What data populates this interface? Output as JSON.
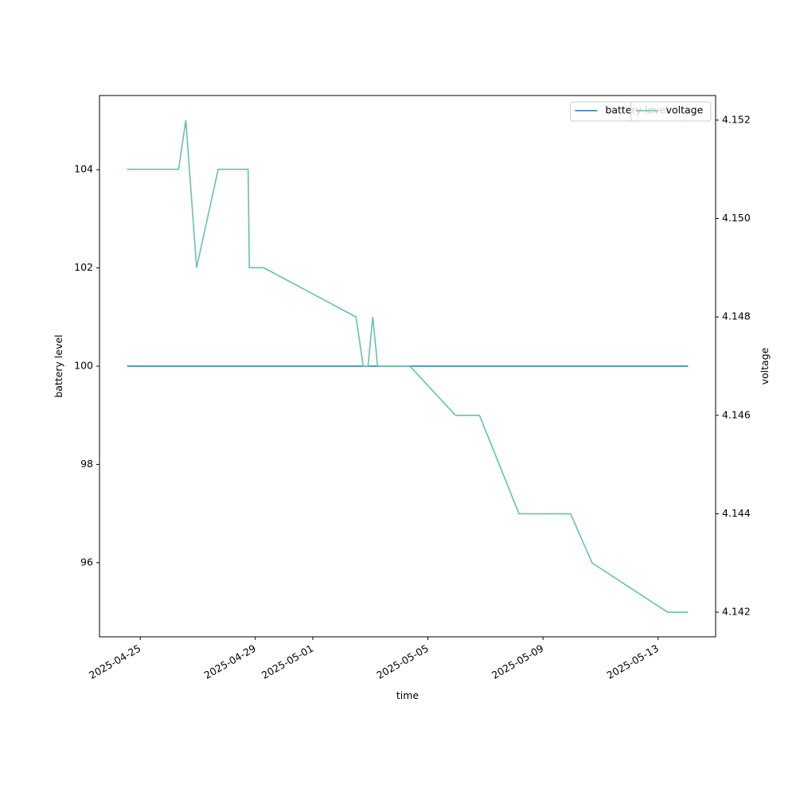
{
  "chart_data": {
    "type": "line",
    "x_label": "time",
    "y_label": "battery level",
    "y2_label": "voltage",
    "x": [
      "2025-04-24T13:00",
      "2025-04-26T08:00",
      "2025-04-26T14:00",
      "2025-04-26T23:00",
      "2025-04-27T17:00",
      "2025-04-28T18:00",
      "2025-04-28T19:00",
      "2025-04-29T07:00",
      "2025-05-02T12:00",
      "2025-05-02T18:00",
      "2025-05-02T22:00",
      "2025-05-03T02:00",
      "2025-05-03T06:00",
      "2025-05-04T09:00",
      "2025-05-05T23:00",
      "2025-05-06T19:00",
      "2025-05-08T04:00",
      "2025-05-09T23:00",
      "2025-05-10T17:00",
      "2025-05-13T08:00",
      "2025-05-14T01:00"
    ],
    "series": [
      {
        "name": "battery level",
        "color": "#1f77b4",
        "axis": "y",
        "values": [
          100,
          100,
          100,
          100,
          100,
          100,
          100,
          100,
          100,
          100,
          100,
          100,
          100,
          100,
          100,
          100,
          100,
          100,
          100,
          100,
          100
        ]
      },
      {
        "name": "voltage",
        "color": "#66c2a5",
        "axis": "y2",
        "values": [
          4.151,
          4.151,
          4.152,
          4.149,
          4.151,
          4.151,
          4.149,
          4.149,
          4.148,
          4.147,
          4.147,
          4.148,
          4.147,
          4.147,
          4.146,
          4.146,
          4.144,
          4.144,
          4.143,
          4.142,
          4.142
        ]
      }
    ],
    "xlim": [
      "2025-04-23T14:00",
      "2025-05-15T00:00"
    ],
    "xticks": [
      "2025-04-25",
      "2025-04-29",
      "2025-05-01",
      "2025-05-05",
      "2025-05-09",
      "2025-05-13"
    ],
    "ylim": [
      94.49,
      105.51
    ],
    "yticks": [
      96,
      98,
      100,
      102,
      104
    ],
    "y2lim": [
      4.1415,
      4.1525
    ],
    "y2ticks": [
      4.142,
      4.144,
      4.146,
      4.148,
      {
        "value": 4.15,
        "label": "4.150"
      },
      4.152
    ],
    "legend": "upper right"
  }
}
